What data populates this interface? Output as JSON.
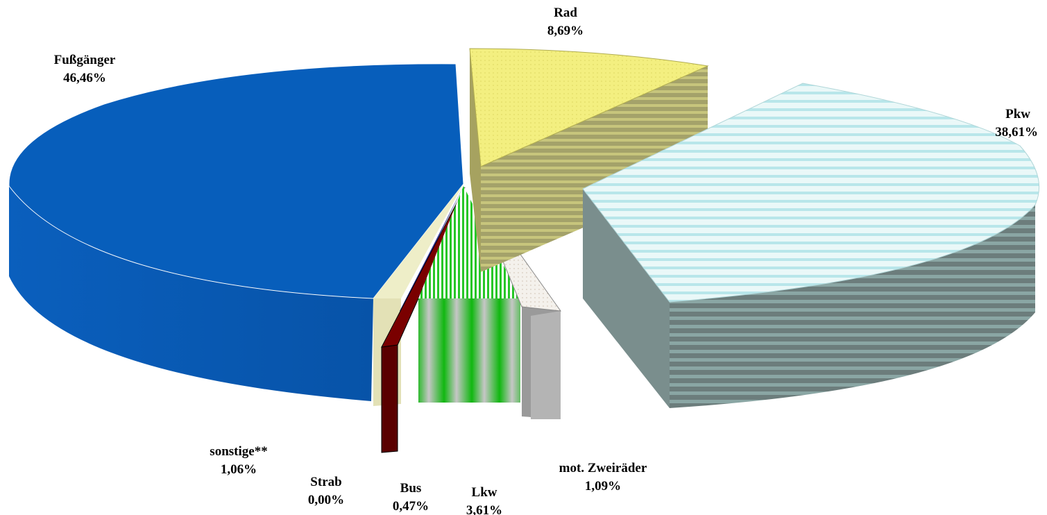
{
  "chart_data": {
    "type": "pie",
    "title": "",
    "slices": [
      {
        "label": "Fußgänger",
        "value": 46.46,
        "value_label": "46,46%",
        "color": "#0a5fbd"
      },
      {
        "label": "Rad",
        "value": 8.69,
        "value_label": "8,69%",
        "color": "#f2ee7a"
      },
      {
        "label": "Pkw",
        "value": 38.61,
        "value_label": "38,61%",
        "color": "#dff5f5"
      },
      {
        "label": "mot. Zweiräder",
        "value": 1.09,
        "value_label": "1,09%",
        "color": "#f0ece4"
      },
      {
        "label": "Lkw",
        "value": 3.61,
        "value_label": "3,61%",
        "color": "#22c322"
      },
      {
        "label": "Bus",
        "value": 0.47,
        "value_label": "0,47%",
        "color": "#6e0000"
      },
      {
        "label": "Strab",
        "value": 0.0,
        "value_label": "0,00%",
        "color": "#333399"
      },
      {
        "label": "sonstige**",
        "value": 1.06,
        "value_label": "1,06%",
        "color": "#eeeec8"
      }
    ]
  }
}
